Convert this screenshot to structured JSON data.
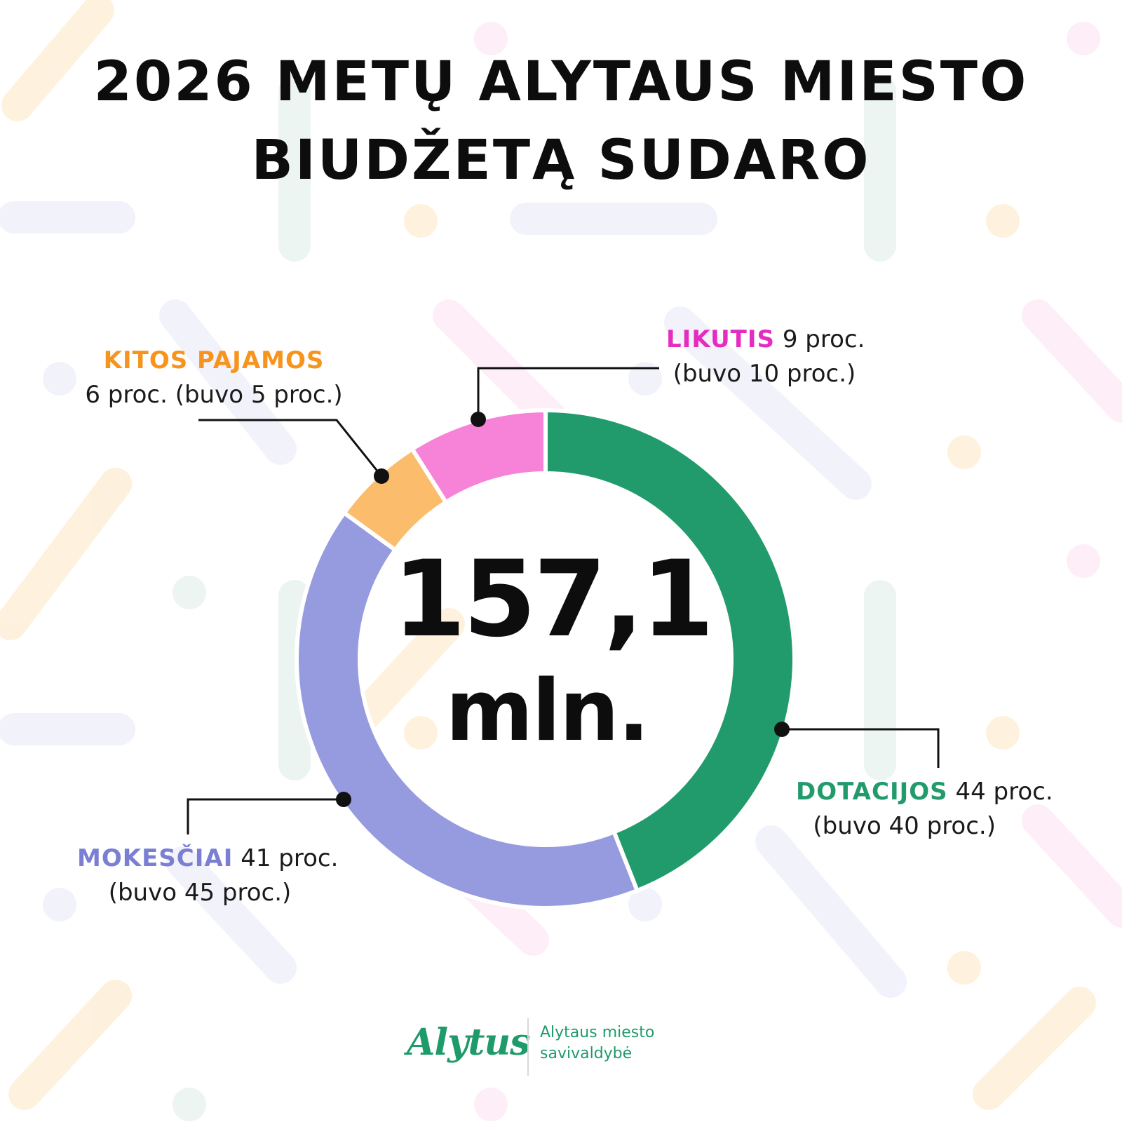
{
  "title": {
    "line1": "2026 METŲ ALYTAUS MIESTO",
    "line2": "BIUDŽETĄ SUDARO"
  },
  "center": {
    "value": "157,1",
    "unit": "mln."
  },
  "labels": {
    "kitos": {
      "name": "KITOS PAJAMOS",
      "detail": "6 proc. (buvo 5 proc.)"
    },
    "likutis": {
      "name": "LIKUTIS",
      "value": "9 proc.",
      "previous": "(buvo 10 proc.)"
    },
    "dotacijos": {
      "name": "DOTACIJOS",
      "value": "44 proc.",
      "previous": "(buvo 40 proc.)"
    },
    "mokesciai": {
      "name": "MOKESČIAI",
      "value": "41 proc.",
      "previous": "(buvo 45 proc.)"
    }
  },
  "chart_data": {
    "type": "pie",
    "total": "157,1 mln.",
    "slices": [
      {
        "label": "DOTACIJOS",
        "value": 44,
        "previous": 40,
        "color": "#229b6c"
      },
      {
        "label": "MOKESČIAI",
        "value": 41,
        "previous": 45,
        "color": "#969bdf"
      },
      {
        "label": "KITOS PAJAMOS",
        "value": 6,
        "previous": 5,
        "color": "#fbbd6b"
      },
      {
        "label": "LIKUTIS",
        "value": 9,
        "previous": 10,
        "color": "#f683d8"
      }
    ]
  },
  "colors": {
    "dotacijos": "#229b6c",
    "mokesciai": "#7b7fd4",
    "kitos": "#f7941d",
    "likutis": "#e62cc0",
    "brand": "#1f9a6a"
  },
  "footer": {
    "logo": "Alytus",
    "org_line1": "Alytaus miesto",
    "org_line2": "savivaldybė"
  }
}
